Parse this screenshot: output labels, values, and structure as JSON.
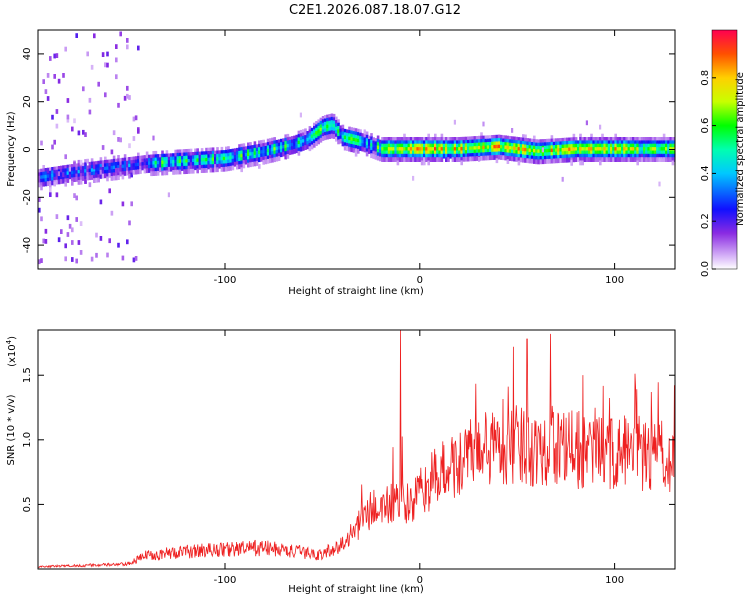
{
  "title": "C2E1.2026.087.18.07.G12",
  "chart_data": [
    {
      "type": "heatmap",
      "xlabel": "Height of straight line (km)",
      "ylabel": "Frequency (Hz)",
      "xlim": [
        -196,
        131
      ],
      "ylim": [
        -50,
        50
      ],
      "xticks": [
        -100,
        0,
        100
      ],
      "yticks": [
        -40,
        -20,
        0,
        20,
        40
      ],
      "colorbar": {
        "label": "Normalized spectral amplitude",
        "range": [
          0,
          1
        ],
        "ticks": [
          0.0,
          0.2,
          0.4,
          0.6,
          0.8
        ]
      },
      "ridge": [
        {
          "x": -196,
          "y": -12
        },
        {
          "x": -180,
          "y": -10
        },
        {
          "x": -160,
          "y": -8
        },
        {
          "x": -140,
          "y": -6
        },
        {
          "x": -120,
          "y": -5
        },
        {
          "x": -100,
          "y": -4
        },
        {
          "x": -80,
          "y": -1
        },
        {
          "x": -65,
          "y": 2
        },
        {
          "x": -58,
          "y": 4
        },
        {
          "x": -50,
          "y": 9
        },
        {
          "x": -45,
          "y": 10
        },
        {
          "x": -40,
          "y": 5
        },
        {
          "x": -30,
          "y": 3
        },
        {
          "x": -20,
          "y": 0
        },
        {
          "x": 0,
          "y": 0
        },
        {
          "x": 20,
          "y": 0
        },
        {
          "x": 40,
          "y": 1
        },
        {
          "x": 60,
          "y": -1
        },
        {
          "x": 80,
          "y": 0
        },
        {
          "x": 100,
          "y": 0
        },
        {
          "x": 131,
          "y": 0
        }
      ]
    },
    {
      "type": "line",
      "series": [
        {
          "name": "SNR",
          "color": "#ee2020"
        }
      ],
      "xlabel": "Height of straight line (km)",
      "ylabel": "SNR (10 * v/v)",
      "yscale_note": "(x10",
      "yscale_exp": "4",
      "xlim": [
        -196,
        131
      ],
      "ylim": [
        0,
        1.85
      ],
      "xticks": [
        -100,
        0,
        100
      ],
      "yticks": [
        0.5,
        1.0,
        1.5
      ],
      "envelope": [
        {
          "x": -196,
          "y": 0.02
        },
        {
          "x": -150,
          "y": 0.04
        },
        {
          "x": -140,
          "y": 0.12
        },
        {
          "x": -110,
          "y": 0.16
        },
        {
          "x": -80,
          "y": 0.18
        },
        {
          "x": -70,
          "y": 0.16
        },
        {
          "x": -50,
          "y": 0.12
        },
        {
          "x": -38,
          "y": 0.25
        },
        {
          "x": -32,
          "y": 0.4
        },
        {
          "x": -25,
          "y": 0.55
        },
        {
          "x": -15,
          "y": 0.6
        },
        {
          "x": -5,
          "y": 0.6
        },
        {
          "x": 5,
          "y": 0.8
        },
        {
          "x": 15,
          "y": 0.95
        },
        {
          "x": 25,
          "y": 1.05
        },
        {
          "x": 35,
          "y": 1.12
        },
        {
          "x": 50,
          "y": 1.15
        },
        {
          "x": 65,
          "y": 1.15
        },
        {
          "x": 80,
          "y": 1.1
        },
        {
          "x": 95,
          "y": 1.08
        },
        {
          "x": 110,
          "y": 1.08
        },
        {
          "x": 131,
          "y": 1.05
        }
      ],
      "peaks": [
        {
          "x": -10,
          "y": 1.85
        },
        {
          "x": 55,
          "y": 1.78
        },
        {
          "x": 67,
          "y": 1.82
        },
        {
          "x": 48,
          "y": 1.72
        }
      ]
    }
  ]
}
